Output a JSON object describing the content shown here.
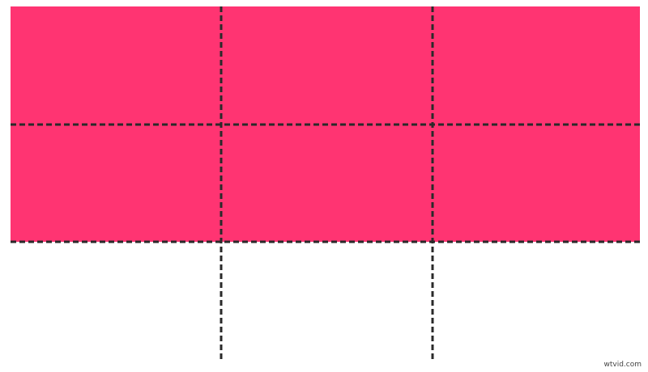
{
  "colors": {
    "fill": "#FF3472",
    "grid_line": "#2a2a2a",
    "background": "#ffffff"
  },
  "grid": {
    "columns": 3,
    "filled_rows": 2,
    "line_style": "dashed"
  },
  "watermark": "wtvid.com"
}
